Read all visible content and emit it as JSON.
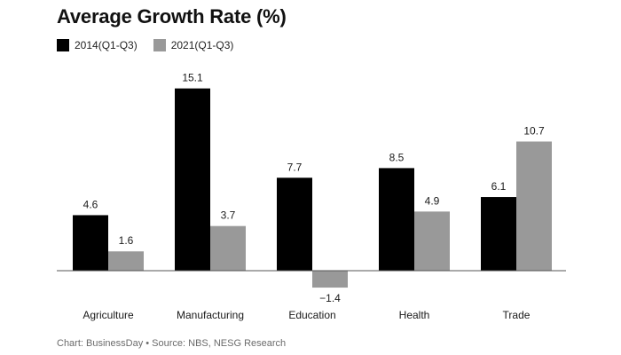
{
  "title": "Average Growth Rate (%)",
  "legend": [
    {
      "label": "2014(Q1-Q3)",
      "color": "#000000"
    },
    {
      "label": "2021(Q1-Q3)",
      "color": "#999999"
    }
  ],
  "footer": "Chart: BusinessDay • Source: NBS, NESG Research",
  "chart_data": {
    "type": "bar",
    "title": "Average Growth Rate (%)",
    "xlabel": "",
    "ylabel": "",
    "categories": [
      "Agriculture",
      "Manufacturing",
      "Education",
      "Health",
      "Trade"
    ],
    "series": [
      {
        "name": "2014(Q1-Q3)",
        "color": "#000000",
        "values": [
          4.6,
          15.1,
          7.7,
          8.5,
          6.1
        ],
        "labels": [
          "4.6",
          "15.1",
          "7.7",
          "8.5",
          "6.1"
        ]
      },
      {
        "name": "2021(Q1-Q3)",
        "color": "#999999",
        "values": [
          1.6,
          3.7,
          -1.4,
          4.9,
          10.7
        ],
        "labels": [
          "1.6",
          "3.7",
          "−1.4",
          "4.9",
          "10.7"
        ]
      }
    ],
    "ylim": [
      -1.4,
      15.1
    ],
    "grid": false,
    "legend_position": "top-left"
  }
}
